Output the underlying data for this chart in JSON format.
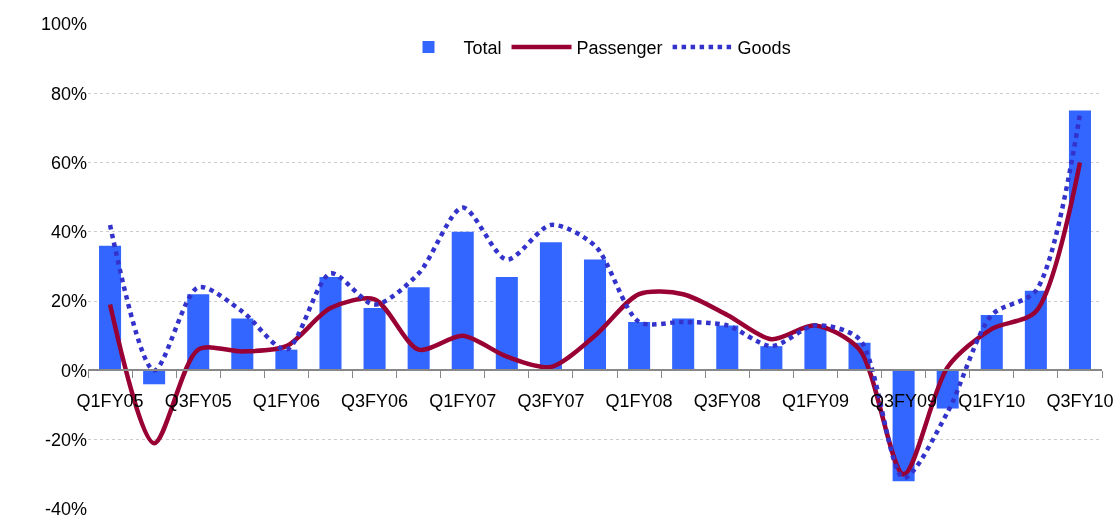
{
  "chart_data": {
    "type": "bar",
    "categories": [
      "Q1FY05",
      null,
      "Q3FY05",
      null,
      "Q1FY06",
      null,
      "Q3FY06",
      null,
      "Q1FY07",
      null,
      "Q3FY07",
      null,
      "Q1FY08",
      null,
      "Q3FY08",
      null,
      "Q1FY09",
      null,
      "Q3FY09",
      null,
      "Q1FY10",
      null,
      "Q3FY10"
    ],
    "series": [
      {
        "name": "Total",
        "color": "#3366ff",
        "values": [
          36,
          -4,
          22,
          15,
          6,
          27,
          18,
          24,
          40,
          27,
          37,
          32,
          14,
          15,
          13,
          7,
          13,
          8,
          -32,
          -11,
          16,
          23,
          75
        ]
      },
      {
        "name": "Passenger",
        "type": "line",
        "color": "#990033",
        "line_style": "solid",
        "values": [
          19,
          -21,
          6,
          5.5,
          7,
          18,
          20.5,
          6,
          10,
          4,
          1,
          10,
          22,
          22,
          16,
          9,
          13,
          6,
          -30,
          1,
          12,
          17,
          60
        ]
      },
      {
        "name": "Goods",
        "type": "line",
        "color": "#3333cc",
        "line_style": "dotted",
        "values": [
          42,
          0,
          24,
          17,
          6,
          28,
          19,
          28,
          47,
          32,
          42,
          36,
          14,
          14,
          13,
          7,
          13,
          9,
          -31,
          -12,
          16,
          23,
          74
        ]
      }
    ],
    "ylim": [
      -40,
      100
    ],
    "yticks": [
      {
        "value": -40,
        "label": "-40%"
      },
      {
        "value": -20,
        "label": "-20%"
      },
      {
        "value": 0,
        "label": "0%"
      },
      {
        "value": 20,
        "label": "20%"
      },
      {
        "value": 40,
        "label": "40%"
      },
      {
        "value": 60,
        "label": "60%"
      },
      {
        "value": 80,
        "label": "80%"
      },
      {
        "value": 100,
        "label": "100%"
      }
    ],
    "grid": "y",
    "legend": "top",
    "marker": "none"
  }
}
